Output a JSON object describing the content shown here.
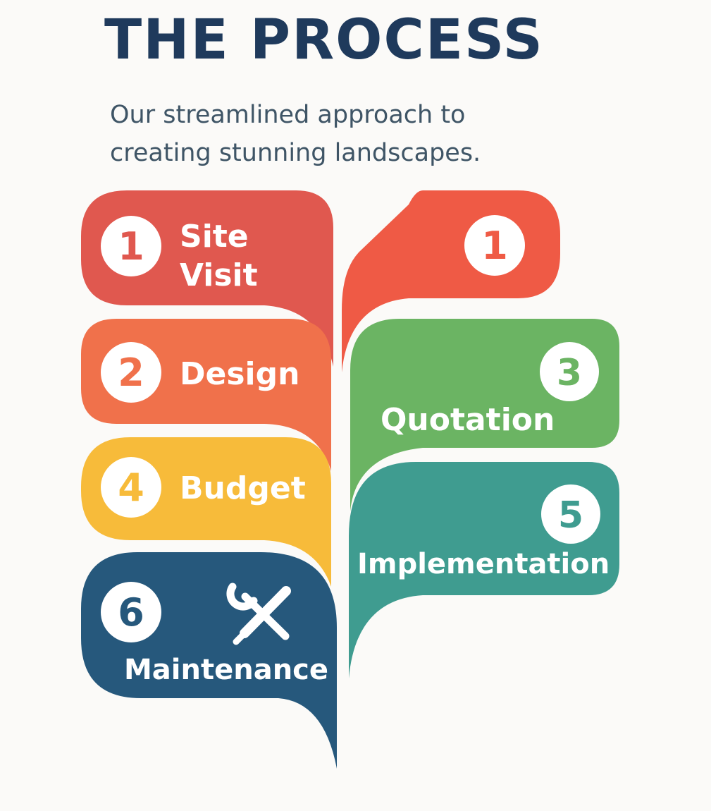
{
  "header": {
    "title": "THE PROCESS",
    "subtitle_line1": "Our streamlined approach to",
    "subtitle_line2": "creating stunning landscapes."
  },
  "steps": [
    {
      "key": "site-visit",
      "number": "1",
      "label_line1": "Site",
      "label_line2": "Visit",
      "color": "#e0584f"
    },
    {
      "key": "unlabeled",
      "number": "1",
      "color": "#ef5a45"
    },
    {
      "key": "design",
      "number": "2",
      "label": "Design",
      "color": "#f0714b"
    },
    {
      "key": "quotation",
      "number": "3",
      "label": "Quotation",
      "color": "#6bb463"
    },
    {
      "key": "budget",
      "number": "4",
      "label": "Budget",
      "color": "#f7bb3a"
    },
    {
      "key": "implementation",
      "number": "5",
      "label": "Implementation",
      "color": "#3f9c90"
    },
    {
      "key": "maintenance",
      "number": "6",
      "label": "Maintenance",
      "color": "#26587c"
    }
  ],
  "icons": {
    "maintenance": "wrench-screwdriver-icon"
  },
  "colors": {
    "title": "#1f3a5c",
    "subtitle": "#3f5566",
    "background": "#fbfaf8"
  }
}
